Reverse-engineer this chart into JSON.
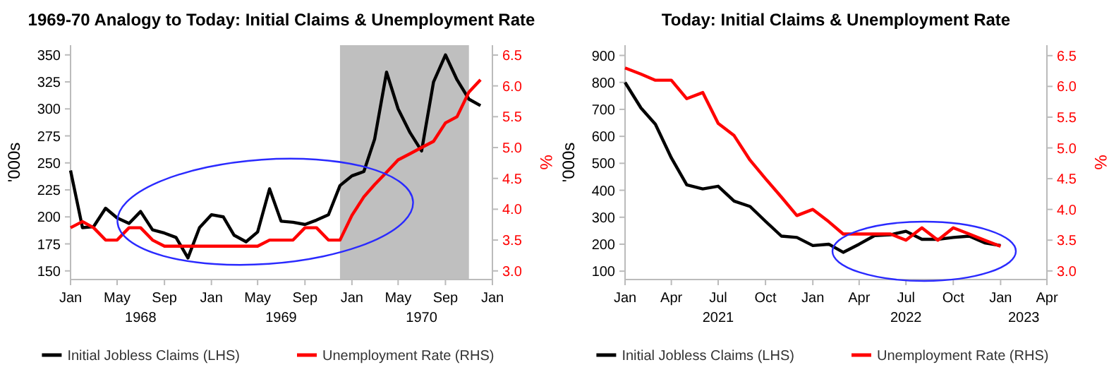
{
  "chart_data": [
    {
      "type": "line",
      "title": "1969-70 Analogy to Today: Initial Claims & Unemployment Rate",
      "ylabel": "'000s",
      "y2label": "%",
      "x": [
        "1968-01",
        "1968-02",
        "1968-03",
        "1968-04",
        "1968-05",
        "1968-06",
        "1968-07",
        "1968-08",
        "1968-09",
        "1968-10",
        "1968-11",
        "1968-12",
        "1969-01",
        "1969-02",
        "1969-03",
        "1969-04",
        "1969-05",
        "1969-06",
        "1969-07",
        "1969-08",
        "1969-09",
        "1969-10",
        "1969-11",
        "1969-12",
        "1970-01",
        "1970-02",
        "1970-03",
        "1970-04",
        "1970-05",
        "1970-06",
        "1970-07",
        "1970-08",
        "1970-09",
        "1970-10",
        "1970-11",
        "1970-12"
      ],
      "series": [
        {
          "name": "Initial Jobless Claims (LHS)",
          "color": "#000000",
          "values": [
            243,
            190,
            191,
            208,
            199,
            194,
            205,
            188,
            185,
            181,
            162,
            190,
            202,
            200,
            183,
            177,
            186,
            226,
            196,
            195,
            193,
            197,
            202,
            229,
            238,
            242,
            272,
            334,
            300,
            278,
            261,
            325,
            350,
            327,
            309,
            303
          ]
        },
        {
          "name": "Unemployment Rate (RHS)",
          "color": "#ff0000",
          "axis": "y2",
          "values": [
            3.7,
            3.8,
            3.7,
            3.5,
            3.5,
            3.7,
            3.7,
            3.5,
            3.4,
            3.4,
            3.4,
            3.4,
            3.4,
            3.4,
            3.4,
            3.4,
            3.4,
            3.5,
            3.5,
            3.5,
            3.7,
            3.7,
            3.5,
            3.5,
            3.9,
            4.2,
            4.4,
            4.6,
            4.8,
            4.9,
            5.0,
            5.1,
            5.4,
            5.5,
            5.9,
            6.1
          ]
        }
      ],
      "xlim": [
        "1968-01",
        "1971-01"
      ],
      "xticks": [
        {
          "value": "1968-01",
          "label": "Jan"
        },
        {
          "value": "1968-05",
          "label": "May"
        },
        {
          "value": "1968-09",
          "label": "Sep"
        },
        {
          "value": "1969-01",
          "label": "Jan"
        },
        {
          "value": "1969-05",
          "label": "May"
        },
        {
          "value": "1969-09",
          "label": "Sep"
        },
        {
          "value": "1970-01",
          "label": "Jan"
        },
        {
          "value": "1970-05",
          "label": "May"
        },
        {
          "value": "1970-09",
          "label": "Sep"
        },
        {
          "value": "1971-01",
          "label": "Jan"
        }
      ],
      "x2lim": [
        "1968-01",
        "1971-01"
      ],
      "x2ticks": [
        {
          "value": "1968-07",
          "label": "1968"
        },
        {
          "value": "1969-07",
          "label": "1969"
        },
        {
          "value": "1970-07",
          "label": "1970"
        }
      ],
      "ylim": [
        142,
        359
      ],
      "yticks": [
        150,
        175,
        200,
        225,
        250,
        275,
        300,
        325,
        350
      ],
      "y2lim": [
        2.86,
        6.66
      ],
      "y2ticks": [
        {
          "value": 3,
          "label": "3.0"
        },
        {
          "value": 3.5,
          "label": "3.5"
        },
        {
          "value": 4,
          "label": "4.0"
        },
        {
          "value": 4.5,
          "label": "4.5"
        },
        {
          "value": 5,
          "label": "5.0"
        },
        {
          "value": 5.5,
          "label": "5.5"
        },
        {
          "value": 6,
          "label": "6.0"
        },
        {
          "value": 6.5,
          "label": "6.5"
        }
      ],
      "bands": [
        {
          "axis": "x",
          "from": "1969-12",
          "to": "1970-11",
          "color": "#bfbfbf"
        }
      ],
      "grid": false,
      "legend": "bottom",
      "marker": "none",
      "line_style": "solid"
    },
    {
      "type": "line",
      "title": "Today: Initial Claims & Unemployment Rate",
      "ylabel": "'000s",
      "y2label": "%",
      "x": [
        "2021-01",
        "2021-02",
        "2021-03",
        "2021-04",
        "2021-05",
        "2021-06",
        "2021-07",
        "2021-08",
        "2021-09",
        "2021-10",
        "2021-11",
        "2021-12",
        "2022-01",
        "2022-02",
        "2022-03",
        "2022-04",
        "2022-05",
        "2022-06",
        "2022-07",
        "2022-08",
        "2022-09",
        "2022-10",
        "2022-11",
        "2022-12",
        "2023-01"
      ],
      "series": [
        {
          "name": "Initial Jobless Claims (LHS)",
          "color": "#000000",
          "values": [
            800,
            705,
            645,
            520,
            420,
            405,
            415,
            360,
            340,
            285,
            230,
            225,
            195,
            200,
            170,
            200,
            232,
            235,
            248,
            218,
            218,
            225,
            230,
            205,
            195
          ]
        },
        {
          "name": "Unemployment Rate (RHS)",
          "color": "#ff0000",
          "axis": "y2",
          "values": [
            6.3,
            6.2,
            6.1,
            6.1,
            5.8,
            5.9,
            5.4,
            5.2,
            4.8,
            4.5,
            4.2,
            3.9,
            4.0,
            3.8,
            3.6,
            3.6,
            3.6,
            3.6,
            3.5,
            3.7,
            3.5,
            3.7,
            3.6,
            3.5,
            3.4
          ]
        }
      ],
      "xlim": [
        "2021-01",
        "2023-04"
      ],
      "xticks": [
        {
          "value": "2021-01",
          "label": "Jan"
        },
        {
          "value": "2021-04",
          "label": "Apr"
        },
        {
          "value": "2021-07",
          "label": "Jul"
        },
        {
          "value": "2021-10",
          "label": "Oct"
        },
        {
          "value": "2022-01",
          "label": "Jan"
        },
        {
          "value": "2022-04",
          "label": "Apr"
        },
        {
          "value": "2022-07",
          "label": "Jul"
        },
        {
          "value": "2022-10",
          "label": "Oct"
        },
        {
          "value": "2023-01",
          "label": "Jan"
        },
        {
          "value": "2023-04",
          "label": "Apr"
        }
      ],
      "x2lim": [
        "2021-01",
        "2023-04"
      ],
      "x2ticks": [
        {
          "value": "2021-07",
          "label": "2021"
        },
        {
          "value": "2022-07",
          "label": "2022"
        },
        {
          "value": "2023-02-15",
          "label": "2023"
        }
      ],
      "ylim": [
        69,
        938
      ],
      "yticks": [
        100,
        200,
        300,
        400,
        500,
        600,
        700,
        800,
        900
      ],
      "y2lim": [
        2.86,
        6.67
      ],
      "y2ticks": [
        {
          "value": 3,
          "label": "3.0"
        },
        {
          "value": 3.5,
          "label": "3.5"
        },
        {
          "value": 4,
          "label": "4.0"
        },
        {
          "value": 4.5,
          "label": "4.5"
        },
        {
          "value": 5,
          "label": "5.0"
        },
        {
          "value": 5.5,
          "label": "5.5"
        },
        {
          "value": 6,
          "label": "6.0"
        },
        {
          "value": 6.5,
          "label": "6.5"
        }
      ],
      "grid": false,
      "legend": "bottom",
      "marker": "none",
      "line_style": "solid"
    }
  ]
}
